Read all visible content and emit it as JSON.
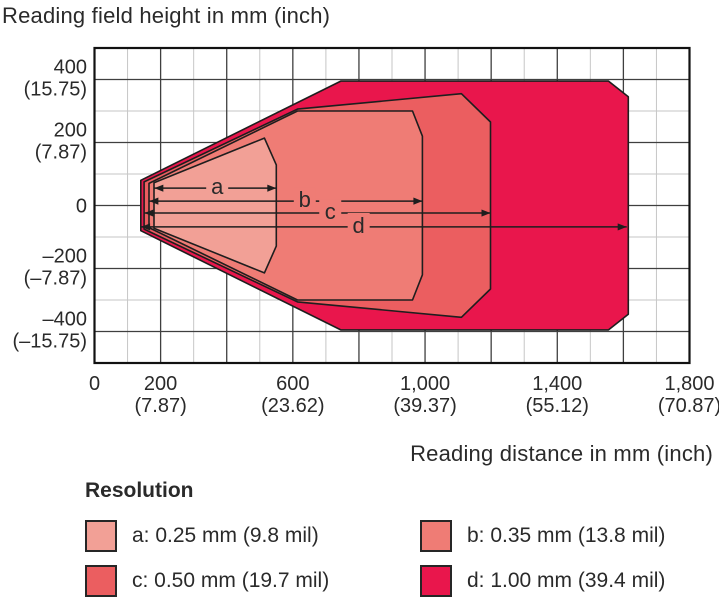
{
  "page": {
    "background": "#ffffff"
  },
  "chart_data": {
    "type": "area",
    "title": "",
    "y_axis_title": "Reading field height in mm (inch)",
    "x_axis_title": "Reading distance in mm (inch)",
    "x_axis": {
      "unit": "mm (inch)",
      "range_mm": [
        0,
        1800
      ],
      "minor_step_mm": 100,
      "major_step_mm": 200,
      "ticks": [
        {
          "value": 0,
          "mm": "0",
          "inch": ""
        },
        {
          "value": 200,
          "mm": "200",
          "inch": "(7.87)"
        },
        {
          "value": 600,
          "mm": "600",
          "inch": "(23.62)"
        },
        {
          "value": 1000,
          "mm": "1,000",
          "inch": "(39.37)"
        },
        {
          "value": 1400,
          "mm": "1,400",
          "inch": "(55.12)"
        },
        {
          "value": 1800,
          "mm": "1,800",
          "inch": "(70.87)"
        }
      ]
    },
    "y_axis": {
      "unit": "mm (inch)",
      "range_mm": [
        -500,
        500
      ],
      "minor_step_mm": 100,
      "major_step_mm": 200,
      "ticks": [
        {
          "value": 400,
          "mm": "400",
          "inch": "(15.75)"
        },
        {
          "value": 200,
          "mm": "200",
          "inch": "(7.87)"
        },
        {
          "value": 0,
          "mm": "0",
          "inch": ""
        },
        {
          "value": -200,
          "mm": "–200",
          "inch": "(–7.87)"
        },
        {
          "value": -400,
          "mm": "–400",
          "inch": "(–15.75)"
        }
      ]
    },
    "series": [
      {
        "id": "d",
        "resolution": "1.00 mm (39.4 mil)",
        "color": "#E9164C",
        "outline": "#1e1e1e",
        "min_distance_mm": 140,
        "max_distance_mm": 1615,
        "max_half_height_mm": 395,
        "points_mm": [
          [
            140,
            80
          ],
          [
            745,
            395
          ],
          [
            1555,
            395
          ],
          [
            1615,
            345
          ],
          [
            1615,
            -345
          ],
          [
            1555,
            -395
          ],
          [
            745,
            -395
          ],
          [
            140,
            -80
          ]
        ]
      },
      {
        "id": "c",
        "resolution": "0.50 mm (19.7 mil)",
        "color": "#EB5E60",
        "outline": "#1e1e1e",
        "min_distance_mm": 150,
        "max_distance_mm": 1198,
        "max_half_height_mm": 355,
        "points_mm": [
          [
            150,
            75
          ],
          [
            614,
            306
          ],
          [
            1110,
            355
          ],
          [
            1198,
            265
          ],
          [
            1198,
            -265
          ],
          [
            1110,
            -355
          ],
          [
            614,
            -306
          ],
          [
            150,
            -75
          ]
        ]
      },
      {
        "id": "b",
        "resolution": "0.35 mm (13.8 mil)",
        "color": "#EF7C75",
        "outline": "#1e1e1e",
        "min_distance_mm": 165,
        "max_distance_mm": 992,
        "max_half_height_mm": 300,
        "points_mm": [
          [
            165,
            70
          ],
          [
            614,
            300
          ],
          [
            962,
            300
          ],
          [
            992,
            220
          ],
          [
            992,
            -220
          ],
          [
            962,
            -300
          ],
          [
            614,
            -300
          ],
          [
            165,
            -70
          ]
        ]
      },
      {
        "id": "a",
        "resolution": "0.25 mm (9.8 mil)",
        "color": "#F2A096",
        "outline": "#1e1e1e",
        "min_distance_mm": 180,
        "max_distance_mm": 550,
        "max_half_height_mm": 215,
        "points_mm": [
          [
            180,
            72
          ],
          [
            514,
            214
          ],
          [
            550,
            129
          ],
          [
            550,
            -129
          ],
          [
            514,
            -214
          ],
          [
            180,
            -72
          ]
        ]
      }
    ],
    "arrows": [
      {
        "id": "a",
        "label": "a",
        "from_mm": 181,
        "to_mm": 550,
        "height_mm": 55,
        "label_x_mm": 350,
        "label_bg": "#F2A096"
      },
      {
        "id": "b",
        "label": "b",
        "from_mm": 166,
        "to_mm": 992,
        "height_mm": 14,
        "label_x_mm": 615,
        "label_bg": "#EF7C75"
      },
      {
        "id": "c",
        "label": "c",
        "from_mm": 151,
        "to_mm": 1198,
        "height_mm": -24,
        "label_x_mm": 692,
        "label_bg": "#EF7C75"
      },
      {
        "id": "d",
        "label": "d",
        "from_mm": 141,
        "to_mm": 1610,
        "height_mm": -68,
        "label_x_mm": 778,
        "label_bg": "#EF7C75"
      }
    ],
    "grid": {
      "minor_color": "#c6c6c6",
      "major_color": "#3f3f3f",
      "frame_color": "#111111",
      "on": true
    },
    "legend_position": "bottom-left"
  },
  "legend": {
    "title": "Resolution",
    "items": [
      {
        "key": "a",
        "label": "a: 0.25 mm (9.8 mil)",
        "color": "#F2A096"
      },
      {
        "key": "b",
        "label": "b: 0.35 mm (13.8 mil)",
        "color": "#EF7C75"
      },
      {
        "key": "c",
        "label": "c: 0.50 mm (19.7 mil)",
        "color": "#EB5E60"
      },
      {
        "key": "d",
        "label": "d: 1.00 mm (39.4 mil)",
        "color": "#E9164C"
      }
    ]
  },
  "colors": {
    "text": "#2a2a2a",
    "accent": "#E9164C"
  }
}
